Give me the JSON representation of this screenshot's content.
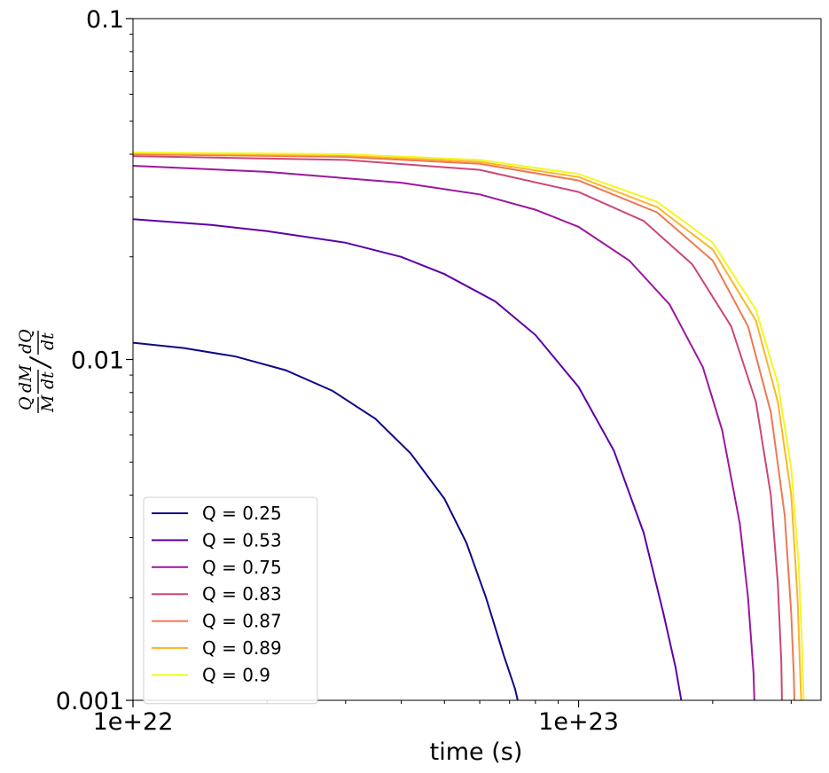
{
  "chart_data": {
    "type": "line",
    "xlabel": "time (s)",
    "ylabel": {
      "num_left": "Q",
      "den_left": "M",
      "num_mid": "dM",
      "den_mid": "dt",
      "slash": "/",
      "num_right": "dQ",
      "den_right": "dt"
    },
    "xscale": "log",
    "yscale": "log",
    "xlim": [
      1e+22,
      3.5e+23
    ],
    "ylim": [
      0.001,
      0.1
    ],
    "xticks": [
      {
        "value": 1e+22,
        "label": "1e+22"
      },
      {
        "value": 1e+23,
        "label": "1e+23"
      }
    ],
    "yticks": [
      {
        "value": 0.001,
        "label": "0.001"
      },
      {
        "value": 0.01,
        "label": "0.01"
      },
      {
        "value": 0.1,
        "label": "0.1"
      }
    ],
    "grid": false,
    "legend_position": "lower-left",
    "series": [
      {
        "name": "Q = 0.25",
        "color": "#0d0887",
        "points": [
          [
            1e+22,
            0.0112
          ],
          [
            1.3e+22,
            0.0108
          ],
          [
            1.7e+22,
            0.0102
          ],
          [
            2.2e+22,
            0.0093
          ],
          [
            2.8e+22,
            0.0081
          ],
          [
            3.5e+22,
            0.0067
          ],
          [
            4.2e+22,
            0.0053
          ],
          [
            5e+22,
            0.0039
          ],
          [
            5.6e+22,
            0.0029
          ],
          [
            6.2e+22,
            0.002
          ],
          [
            6.8e+22,
            0.00135
          ],
          [
            7.2e+22,
            0.00108
          ],
          [
            7.3e+22,
            0.001
          ]
        ]
      },
      {
        "name": "Q = 0.53",
        "color": "#5c01a6",
        "points": [
          [
            1e+22,
            0.0258
          ],
          [
            1.5e+22,
            0.0248
          ],
          [
            2e+22,
            0.0238
          ],
          [
            3e+22,
            0.022
          ],
          [
            4e+22,
            0.02
          ],
          [
            5e+22,
            0.0178
          ],
          [
            6.5e+22,
            0.0148
          ],
          [
            8e+22,
            0.0118
          ],
          [
            1e+23,
            0.0083
          ],
          [
            1.2e+23,
            0.0054
          ],
          [
            1.4e+23,
            0.0031
          ],
          [
            1.55e+23,
            0.0018
          ],
          [
            1.65e+23,
            0.00125
          ],
          [
            1.7e+23,
            0.001
          ]
        ]
      },
      {
        "name": "Q = 0.75",
        "color": "#9c179e",
        "points": [
          [
            1e+22,
            0.037
          ],
          [
            2e+22,
            0.0355
          ],
          [
            4e+22,
            0.033
          ],
          [
            6e+22,
            0.0305
          ],
          [
            8e+22,
            0.0275
          ],
          [
            1e+23,
            0.0245
          ],
          [
            1.3e+23,
            0.0195
          ],
          [
            1.6e+23,
            0.0145
          ],
          [
            1.9e+23,
            0.0095
          ],
          [
            2.1e+23,
            0.0062
          ],
          [
            2.3e+23,
            0.0033
          ],
          [
            2.4e+23,
            0.002
          ],
          [
            2.47e+23,
            0.0012
          ],
          [
            2.48e+23,
            0.001
          ]
        ]
      },
      {
        "name": "Q = 0.83",
        "color": "#cc4778",
        "points": [
          [
            1e+22,
            0.0395
          ],
          [
            3e+22,
            0.0385
          ],
          [
            6e+22,
            0.036
          ],
          [
            1e+23,
            0.031
          ],
          [
            1.4e+23,
            0.0255
          ],
          [
            1.8e+23,
            0.019
          ],
          [
            2.2e+23,
            0.0125
          ],
          [
            2.5e+23,
            0.0075
          ],
          [
            2.7e+23,
            0.004
          ],
          [
            2.8e+23,
            0.0022
          ],
          [
            2.85e+23,
            0.0013
          ],
          [
            2.86e+23,
            0.001
          ]
        ]
      },
      {
        "name": "Q = 0.87",
        "color": "#ed7953",
        "points": [
          [
            1e+22,
            0.04
          ],
          [
            3e+22,
            0.0393
          ],
          [
            6e+22,
            0.0375
          ],
          [
            1e+23,
            0.0335
          ],
          [
            1.5e+23,
            0.027
          ],
          [
            2e+23,
            0.0195
          ],
          [
            2.4e+23,
            0.0125
          ],
          [
            2.7e+23,
            0.007
          ],
          [
            2.9e+23,
            0.0035
          ],
          [
            3e+23,
            0.0018
          ],
          [
            3.04e+23,
            0.0012
          ],
          [
            3.05e+23,
            0.001
          ]
        ]
      },
      {
        "name": "Q = 0.89",
        "color": "#fdb42f",
        "points": [
          [
            1e+22,
            0.0403
          ],
          [
            3e+22,
            0.0397
          ],
          [
            6e+22,
            0.038
          ],
          [
            1e+23,
            0.0343
          ],
          [
            1.5e+23,
            0.028
          ],
          [
            2e+23,
            0.021
          ],
          [
            2.5e+23,
            0.013
          ],
          [
            2.8e+23,
            0.0075
          ],
          [
            3e+23,
            0.004
          ],
          [
            3.1e+23,
            0.002
          ],
          [
            3.15e+23,
            0.0011
          ],
          [
            3.16e+23,
            0.001
          ]
        ]
      },
      {
        "name": "Q = 0.9",
        "color": "#f0f921",
        "points": [
          [
            1e+22,
            0.0405
          ],
          [
            3e+22,
            0.04
          ],
          [
            6e+22,
            0.0385
          ],
          [
            1e+23,
            0.035
          ],
          [
            1.5e+23,
            0.029
          ],
          [
            2e+23,
            0.022
          ],
          [
            2.5e+23,
            0.014
          ],
          [
            2.8e+23,
            0.0085
          ],
          [
            3e+23,
            0.0048
          ],
          [
            3.12e+23,
            0.0025
          ],
          [
            3.18e+23,
            0.0013
          ],
          [
            3.2e+23,
            0.001
          ]
        ]
      }
    ]
  }
}
